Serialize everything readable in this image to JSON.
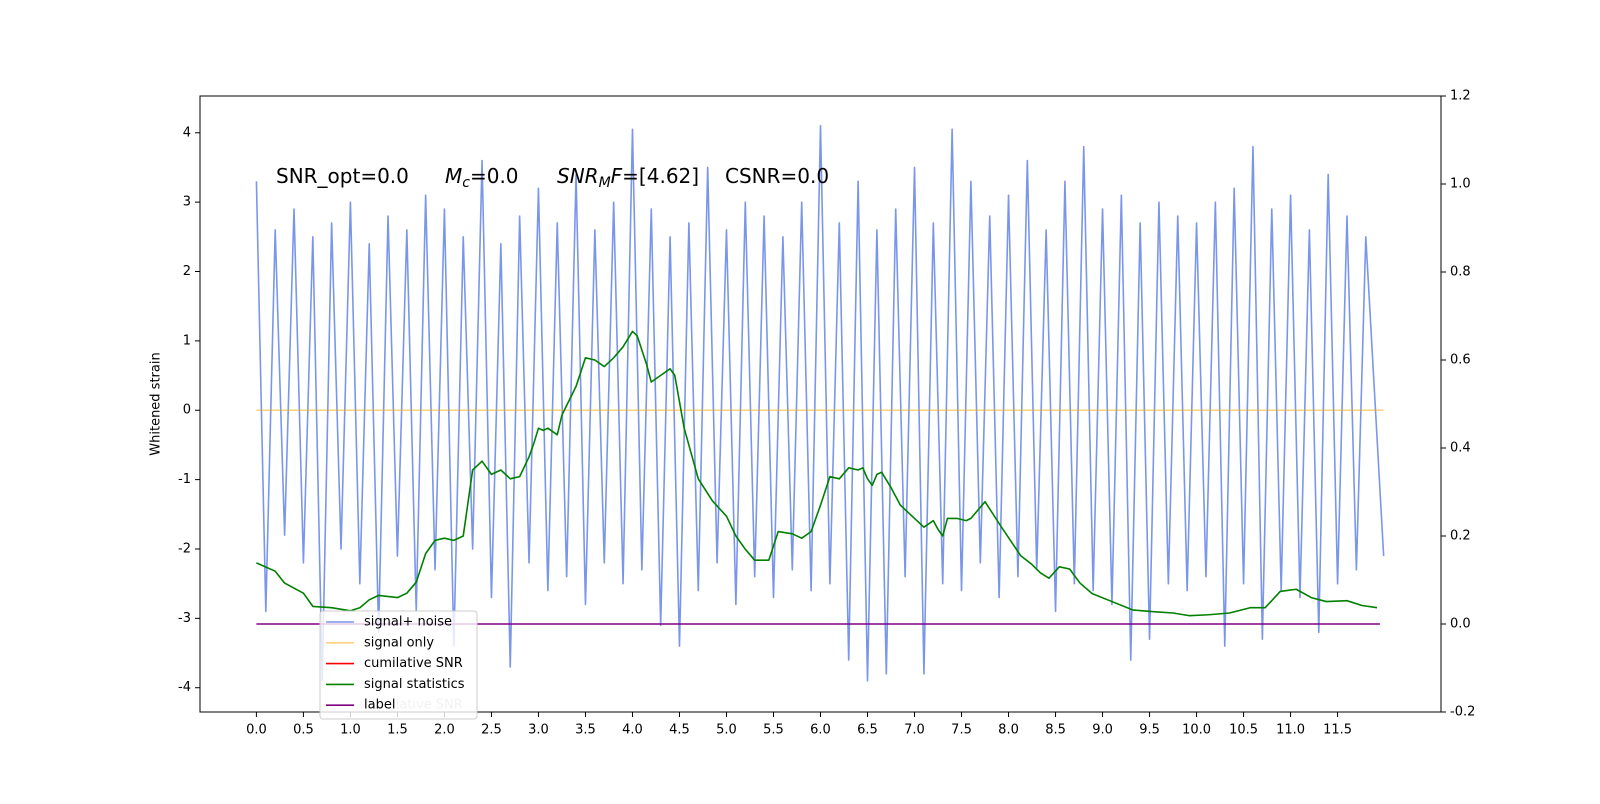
{
  "chart_data": {
    "type": "line",
    "ylabel": "Whitened strain",
    "xlim": [
      -0.6,
      12.6
    ],
    "ylim": [
      -4.35,
      4.53
    ],
    "y2lim": [
      -0.2,
      1.2
    ],
    "xticks": [
      {
        "value": 0,
        "label": "0.0"
      },
      0.5,
      {
        "value": 1,
        "label": "1.0"
      },
      1.5,
      {
        "value": 2,
        "label": "2.0"
      },
      2.5,
      {
        "value": 3,
        "label": "3.0"
      },
      3.5,
      {
        "value": 4,
        "label": "4.0"
      },
      4.5,
      {
        "value": 5,
        "label": "5.0"
      },
      5.5,
      {
        "value": 6,
        "label": "6.0"
      },
      6.5,
      {
        "value": 7,
        "label": "7.0"
      },
      7.5,
      {
        "value": 8,
        "label": "8.0"
      },
      8.5,
      {
        "value": 9,
        "label": "9.0"
      },
      9.5,
      {
        "value": 10,
        "label": "10.0"
      },
      10.5,
      {
        "value": 11,
        "label": "11.0"
      },
      11.5
    ],
    "yticks": [
      -4,
      -3,
      -2,
      -1,
      0,
      1,
      2,
      3,
      4
    ],
    "y2ticks": [
      -0.2,
      {
        "value": 0,
        "label": "0.0"
      },
      0.2,
      0.4,
      0.6,
      0.8,
      {
        "value": 1,
        "label": "1.0"
      },
      1.2
    ],
    "legend": true,
    "ghost_text": "cumilative SNR",
    "annotations": [
      [
        {
          "text": "SNR_opt=0.0"
        }
      ],
      [
        {
          "text": "M",
          "italic": true
        },
        {
          "text": "c",
          "italic": true,
          "sub": true
        },
        {
          "text": "=0.0"
        }
      ],
      [
        {
          "text": "SNR",
          "italic": true
        },
        {
          "text": "M",
          "italic": true,
          "sub": true
        },
        {
          "text": "F",
          "italic": true
        },
        {
          "text": "=[4.62]"
        }
      ],
      [
        {
          "text": "CSNR=0.0"
        }
      ]
    ],
    "series": [
      {
        "name": "signal+ noise",
        "color": "#4169e1",
        "alpha": 0.7,
        "x": [
          0,
          0.1,
          0.2,
          0.3,
          0.4,
          0.5,
          0.6,
          0.7,
          0.8,
          0.9,
          1,
          1.1,
          1.2,
          1.3,
          1.4,
          1.5,
          1.6,
          1.7,
          1.8,
          1.9,
          2,
          2.1,
          2.2,
          2.3,
          2.4,
          2.5,
          2.6,
          2.7,
          2.8,
          2.9,
          3,
          3.1,
          3.2,
          3.3,
          3.4,
          3.5,
          3.6,
          3.7,
          3.8,
          3.9,
          4,
          4.1,
          4.2,
          4.3,
          4.4,
          4.5,
          4.6,
          4.7,
          4.8,
          4.9,
          5,
          5.1,
          5.2,
          5.3,
          5.4,
          5.5,
          5.6,
          5.7,
          5.8,
          5.9,
          6,
          6.1,
          6.2,
          6.3,
          6.4,
          6.5,
          6.6,
          6.7,
          6.8,
          6.9,
          7,
          7.1,
          7.2,
          7.3,
          7.4,
          7.5,
          7.6,
          7.7,
          7.8,
          7.9,
          8,
          8.1,
          8.2,
          8.3,
          8.4,
          8.5,
          8.6,
          8.7,
          8.8,
          8.9,
          9,
          9.1,
          9.2,
          9.3,
          9.4,
          9.5,
          9.6,
          9.7,
          9.8,
          9.9,
          10,
          10.1,
          10.2,
          10.3,
          10.4,
          10.5,
          10.6,
          10.7,
          10.8,
          10.9,
          11,
          11.1,
          11.2,
          11.3,
          11.4,
          11.5,
          11.6,
          11.7,
          11.8,
          11.99
        ],
        "values": [
          3.3,
          -2.9,
          2.6,
          -1.8,
          2.9,
          -2.2,
          2.5,
          -3.9,
          2.7,
          -2.0,
          3.0,
          -2.5,
          2.4,
          -3.2,
          2.8,
          -2.1,
          2.6,
          -2.9,
          3.1,
          -2.3,
          2.9,
          -3.4,
          2.5,
          -2.0,
          3.6,
          -2.7,
          2.4,
          -3.7,
          2.8,
          -2.2,
          3.2,
          -2.6,
          2.7,
          -2.4,
          3.4,
          -2.8,
          2.6,
          -2.2,
          3.0,
          -2.5,
          4.05,
          -2.3,
          2.9,
          -3.1,
          2.5,
          -3.4,
          2.7,
          -2.6,
          3.5,
          -2.2,
          2.6,
          -2.8,
          3.0,
          -2.4,
          2.8,
          -2.7,
          2.5,
          -2.3,
          3.0,
          -2.6,
          4.1,
          -2.5,
          2.7,
          -3.6,
          3.3,
          -3.9,
          2.6,
          -3.8,
          2.9,
          -2.4,
          3.5,
          -3.8,
          2.7,
          -2.5,
          4.05,
          -2.6,
          3.3,
          -2.2,
          2.8,
          -2.7,
          3.1,
          -2.4,
          3.6,
          -2.3,
          2.6,
          -2.9,
          3.3,
          -2.5,
          3.8,
          -2.6,
          2.9,
          -2.8,
          3.1,
          -3.6,
          2.7,
          -3.3,
          3.0,
          -2.5,
          2.8,
          -2.6,
          2.7,
          -2.4,
          3.0,
          -3.4,
          3.2,
          -2.5,
          3.8,
          -3.3,
          2.9,
          -2.6,
          3.1,
          -2.7,
          2.6,
          -3.2,
          3.4,
          -2.5,
          2.8,
          -2.3,
          2.5,
          -2.1
        ]
      },
      {
        "name": "signal only",
        "color": "#ffa500",
        "alpha": 0.5,
        "x": [
          0,
          11.99
        ],
        "values": [
          0,
          0
        ]
      },
      {
        "name": "cumilative SNR",
        "color": "red"
      },
      {
        "name": "signal statistics",
        "color": "green",
        "axis": "y2",
        "x": [
          0,
          0.2,
          0.3,
          0.5,
          0.6,
          0.8,
          1,
          1.1,
          1.2,
          1.3,
          1.5,
          1.6,
          1.7,
          1.8,
          1.9,
          2,
          2.1,
          2.2,
          2.3,
          2.4,
          2.5,
          2.6,
          2.7,
          2.8,
          2.9,
          2.95,
          3,
          3.05,
          3.1,
          3.2,
          3.25,
          3.4,
          3.5,
          3.6,
          3.7,
          3.8,
          3.9,
          4,
          4.05,
          4.15,
          4.2,
          4.3,
          4.4,
          4.45,
          4.55,
          4.7,
          4.85,
          5,
          5.1,
          5.2,
          5.3,
          5.45,
          5.55,
          5.7,
          5.8,
          5.9,
          6,
          6.1,
          6.2,
          6.3,
          6.4,
          6.45,
          6.5,
          6.55,
          6.6,
          6.65,
          6.75,
          6.85,
          7,
          7.1,
          7.2,
          7.25,
          7.3,
          7.35,
          7.45,
          7.55,
          7.6,
          7.75,
          7.91,
          8.02,
          8.13,
          8.24,
          8.34,
          8.43,
          8.54,
          8.65,
          8.76,
          8.89,
          9.1,
          9.32,
          9.54,
          9.75,
          9.92,
          10.13,
          10.35,
          10.57,
          10.73,
          10.89,
          11.06,
          11.22,
          11.38,
          11.6,
          11.76,
          11.92
        ],
        "values": [
          0.139,
          0.12,
          0.093,
          0.07,
          0.04,
          0.037,
          0.03,
          0.037,
          0.055,
          0.065,
          0.06,
          0.07,
          0.095,
          0.16,
          0.19,
          0.195,
          0.19,
          0.2,
          0.35,
          0.37,
          0.34,
          0.35,
          0.33,
          0.335,
          0.38,
          0.41,
          0.445,
          0.44,
          0.445,
          0.43,
          0.475,
          0.54,
          0.605,
          0.6,
          0.585,
          0.605,
          0.63,
          0.665,
          0.655,
          0.59,
          0.55,
          0.565,
          0.58,
          0.565,
          0.445,
          0.33,
          0.28,
          0.245,
          0.2,
          0.17,
          0.145,
          0.145,
          0.21,
          0.205,
          0.195,
          0.21,
          0.27,
          0.335,
          0.33,
          0.355,
          0.35,
          0.355,
          0.33,
          0.315,
          0.34,
          0.345,
          0.31,
          0.27,
          0.24,
          0.22,
          0.235,
          0.215,
          0.2,
          0.24,
          0.24,
          0.235,
          0.24,
          0.278,
          0.225,
          0.19,
          0.155,
          0.137,
          0.116,
          0.104,
          0.13,
          0.125,
          0.093,
          0.069,
          0.051,
          0.032,
          0.028,
          0.025,
          0.019,
          0.021,
          0.025,
          0.037,
          0.037,
          0.074,
          0.079,
          0.06,
          0.051,
          0.053,
          0.042,
          0.037
        ]
      },
      {
        "name": "label",
        "color": "purple",
        "axis": "y2",
        "x": [
          0,
          11.95
        ],
        "values": [
          0,
          0
        ]
      }
    ]
  }
}
